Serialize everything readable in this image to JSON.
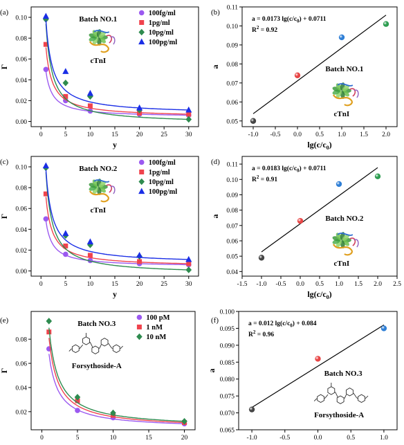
{
  "chart_data": [
    {
      "panel": "(a)",
      "type": "scatter",
      "xlabel": "y",
      "ylabel": "Γ",
      "xlim": [
        -2,
        32
      ],
      "ylim": [
        -0.005,
        0.11
      ],
      "xticks": [
        0,
        5,
        10,
        15,
        20,
        25,
        30
      ],
      "yticks": [
        0.0,
        0.02,
        0.04,
        0.06,
        0.08,
        0.1
      ],
      "ytick_labels": [
        "0.00",
        "0.02",
        "0.04",
        "0.06",
        "0.08",
        "0.10"
      ],
      "annotations": [
        "Batch NO.1",
        "cTnI"
      ],
      "legend_position": "top-right",
      "series": [
        {
          "name": "100fg/ml",
          "marker": "circle",
          "color": "#9b59f0",
          "x": [
            1,
            5,
            10,
            20,
            30
          ],
          "y": [
            0.05,
            0.02,
            0.01,
            0.007,
            0.006
          ]
        },
        {
          "name": "1pg/ml",
          "marker": "square",
          "color": "#f0434d",
          "x": [
            1,
            5,
            10,
            20,
            30
          ],
          "y": [
            0.074,
            0.024,
            0.015,
            0.008,
            0.007
          ]
        },
        {
          "name": "10pg/ml",
          "marker": "diamond",
          "color": "#2e8b4f",
          "x": [
            1,
            5,
            10,
            20,
            30
          ],
          "y": [
            0.098,
            0.037,
            0.024,
            0.011,
            0.002
          ]
        },
        {
          "name": "100pg/ml",
          "marker": "triangle",
          "color": "#1a2ee6",
          "x": [
            1,
            5,
            10,
            20,
            30
          ],
          "y": [
            0.101,
            0.048,
            0.027,
            0.013,
            0.011
          ]
        }
      ]
    },
    {
      "panel": "(b)",
      "type": "scatter",
      "xlabel": "lg(c/c0)",
      "ylabel": "a",
      "xlim": [
        -1.25,
        2.25
      ],
      "ylim": [
        0.047,
        0.11
      ],
      "xticks": [
        -1.0,
        -0.5,
        0.0,
        0.5,
        1.0,
        1.5,
        2.0
      ],
      "xtick_labels": [
        "-1.0",
        "-0.5",
        "0.0",
        "0.5",
        "1.0",
        "1.5",
        "2.0"
      ],
      "yticks": [
        0.05,
        0.06,
        0.07,
        0.08,
        0.09,
        0.1,
        0.11
      ],
      "ytick_labels": [
        "0.05",
        "0.06",
        "0.07",
        "0.08",
        "0.09",
        "0.10",
        "0.11"
      ],
      "equation": "a = 0.0173 lg(c/c0) + 0.0711",
      "r2": "= 0.92",
      "annotations": [
        "Batch NO.1",
        "cTnI"
      ],
      "fit_line": {
        "x": [
          -1.0,
          2.0
        ],
        "y": [
          0.0538,
          0.1057
        ]
      },
      "points": {
        "x": [
          -1,
          0,
          1,
          2
        ],
        "y": [
          0.05,
          0.074,
          0.094,
          0.101
        ],
        "colors": [
          "#454545",
          "#e84545",
          "#2f7fd6",
          "#2f9e52"
        ]
      }
    },
    {
      "panel": "(c)",
      "type": "scatter",
      "xlabel": "y",
      "ylabel": "Γ",
      "xlim": [
        -2,
        32
      ],
      "ylim": [
        -0.005,
        0.11
      ],
      "xticks": [
        0,
        5,
        10,
        15,
        20,
        25,
        30
      ],
      "yticks": [
        0.0,
        0.02,
        0.04,
        0.06,
        0.08,
        0.1
      ],
      "ytick_labels": [
        "0.00",
        "0.02",
        "0.04",
        "0.06",
        "0.08",
        "0.10"
      ],
      "annotations": [
        "Batch NO.2",
        "cTnI"
      ],
      "legend_position": "top-right",
      "series": [
        {
          "name": "100fg/ml",
          "marker": "circle",
          "color": "#9b59f0",
          "x": [
            1,
            5,
            10,
            20,
            30
          ],
          "y": [
            0.05,
            0.016,
            0.01,
            0.007,
            0.006
          ]
        },
        {
          "name": "1pg/ml",
          "marker": "square",
          "color": "#f0434d",
          "x": [
            1,
            5,
            10,
            20,
            30
          ],
          "y": [
            0.074,
            0.024,
            0.015,
            0.009,
            0.007
          ]
        },
        {
          "name": "10pg/ml",
          "marker": "diamond",
          "color": "#2e8b4f",
          "x": [
            1,
            5,
            10,
            20,
            30
          ],
          "y": [
            0.099,
            0.034,
            0.025,
            0.014,
            0.001
          ]
        },
        {
          "name": "100pg/ml",
          "marker": "triangle",
          "color": "#1a2ee6",
          "x": [
            1,
            5,
            10,
            20,
            30
          ],
          "y": [
            0.101,
            0.036,
            0.028,
            0.015,
            0.011
          ]
        }
      ]
    },
    {
      "panel": "(d)",
      "type": "scatter",
      "xlabel": "lg(c/c0)",
      "ylabel": "a",
      "xlim": [
        -1.5,
        2.5
      ],
      "ylim": [
        0.037,
        0.115
      ],
      "xticks": [
        -1.5,
        -1.0,
        -0.5,
        0.0,
        0.5,
        1.0,
        1.5,
        2.0,
        2.5
      ],
      "xtick_labels": [
        "-1.5",
        "-1.0",
        "-0.5",
        "0.0",
        "0.5",
        "1.0",
        "1.5",
        "2.0",
        "2.5"
      ],
      "yticks": [
        0.04,
        0.05,
        0.06,
        0.07,
        0.08,
        0.09,
        0.1,
        0.11
      ],
      "ytick_labels": [
        "0.04",
        "0.05",
        "0.06",
        "0.07",
        "0.08",
        "0.09",
        "0.10",
        "0.11"
      ],
      "equation": "a = 0.0183 lg(c/c0) + 0.0711",
      "r2": "= 0.91",
      "annotations": [
        "Batch NO.2",
        "cTnI"
      ],
      "fit_line": {
        "x": [
          -1.0,
          2.0
        ],
        "y": [
          0.0528,
          0.1077
        ]
      },
      "points": {
        "x": [
          -1,
          0,
          1,
          2
        ],
        "y": [
          0.049,
          0.073,
          0.097,
          0.102
        ],
        "colors": [
          "#454545",
          "#e84545",
          "#2f7fd6",
          "#2f9e52"
        ]
      }
    },
    {
      "panel": "(e)",
      "type": "scatter",
      "xlabel": "y",
      "ylabel": "Γ",
      "xlim": [
        -1.5,
        21.5
      ],
      "ylim": [
        0.005,
        0.103
      ],
      "xticks": [
        0,
        5,
        10,
        15,
        20
      ],
      "yticks": [
        0.02,
        0.04,
        0.06,
        0.08
      ],
      "ytick_labels": [
        "0.02",
        "0.04",
        "0.06",
        "0.08"
      ],
      "annotations": [
        "Batch NO.3",
        "Forsythoside-A"
      ],
      "legend_position": "top-right",
      "series": [
        {
          "name": "100 pM",
          "marker": "circle",
          "color": "#9b59f0",
          "x": [
            1,
            5,
            10,
            20
          ],
          "y": [
            0.072,
            0.021,
            0.015,
            0.01
          ]
        },
        {
          "name": "1 nM",
          "marker": "square",
          "color": "#f0434d",
          "x": [
            1,
            5,
            10,
            20
          ],
          "y": [
            0.086,
            0.029,
            0.017,
            0.011
          ]
        },
        {
          "name": "10 nM",
          "marker": "diamond",
          "color": "#2e8b4f",
          "x": [
            1,
            5,
            10,
            20
          ],
          "y": [
            0.095,
            0.032,
            0.019,
            0.012
          ]
        }
      ]
    },
    {
      "panel": "(f)",
      "type": "scatter",
      "xlabel": "lg(c/c0)",
      "ylabel": "a",
      "xlim": [
        -1.2,
        1.2
      ],
      "ylim": [
        0.065,
        0.1
      ],
      "xticks": [
        -1.0,
        -0.5,
        0.0,
        0.5,
        1.0
      ],
      "xtick_labels": [
        "-1.0",
        "-0.5",
        "0.0",
        "0.5",
        "1.0"
      ],
      "yticks": [
        0.065,
        0.07,
        0.075,
        0.08,
        0.085,
        0.09,
        0.095,
        0.1
      ],
      "ytick_labels": [
        "0.065",
        "0.070",
        "0.075",
        "0.080",
        "0.085",
        "0.090",
        "0.095",
        "0.100"
      ],
      "equation": "a = 0.012 lg(c/c0) + 0.084",
      "r2": "= 0.96",
      "annotations": [
        "Batch NO.3",
        "Forsythoside-A"
      ],
      "fit_line": {
        "x": [
          -1.0,
          1.0
        ],
        "y": [
          0.0716,
          0.096
        ]
      },
      "points": {
        "x": [
          -1,
          0,
          1
        ],
        "y": [
          0.071,
          0.086,
          0.095
        ],
        "colors": [
          "#454545",
          "#e84545",
          "#2f7fd6"
        ]
      }
    }
  ]
}
